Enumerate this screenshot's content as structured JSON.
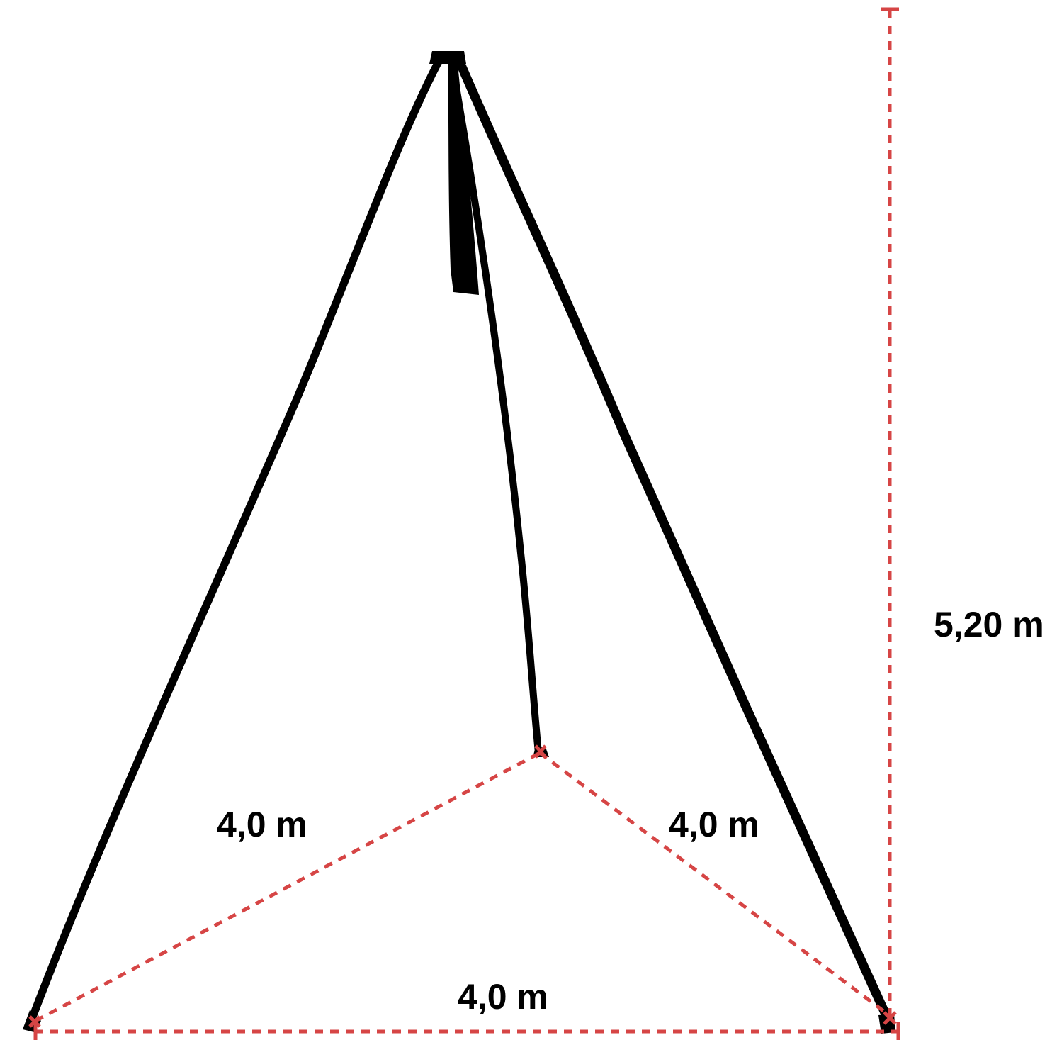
{
  "diagram": {
    "dimension_color": "#d64545",
    "leg_color": "#000000",
    "labels": {
      "height": "5,20 m",
      "left_edge": "4,0 m",
      "right_edge": "4,0 m",
      "base_edge": "4,0 m"
    },
    "legs": [
      {
        "name": "left-leg"
      },
      {
        "name": "rear-leg"
      },
      {
        "name": "right-leg"
      }
    ]
  }
}
